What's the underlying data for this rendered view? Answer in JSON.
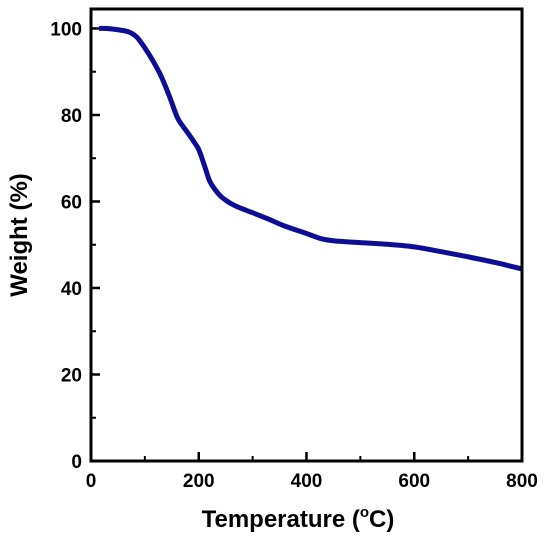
{
  "chart_data": {
    "type": "line",
    "xlabel": {
      "prefix": "Temperature (",
      "superscript": "o",
      "suffix": "C)"
    },
    "ylabel": "Weight (%)",
    "xlim": [
      0,
      800
    ],
    "ylim": [
      0,
      104.5
    ],
    "xticks": [
      0,
      200,
      400,
      600,
      800
    ],
    "yticks": [
      0,
      20,
      40,
      60,
      80,
      100
    ],
    "xtick_labels": [
      "0",
      "200",
      "400",
      "600",
      "800"
    ],
    "ytick_labels": [
      "0",
      "20",
      "40",
      "60",
      "80",
      "100"
    ],
    "grid": false,
    "series": [
      {
        "color": "#0d0d96",
        "x": [
          15,
          30,
          50,
          70,
          85,
          100,
          115,
          130,
          145,
          160,
          170,
          180,
          190,
          200,
          210,
          220,
          230,
          240,
          250,
          260,
          275,
          300,
          330,
          360,
          400,
          430,
          460,
          500,
          550,
          600,
          650,
          700,
          750,
          800
        ],
        "y": [
          100,
          100,
          99.7,
          99.2,
          98,
          95.5,
          92.5,
          89,
          84.5,
          79.5,
          77.5,
          75.8,
          74,
          72,
          68.5,
          64.8,
          62.8,
          61.3,
          60.3,
          59.5,
          58.6,
          57.4,
          55.9,
          54.3,
          52.6,
          51.3,
          50.8,
          50.5,
          50.1,
          49.5,
          48.4,
          47.2,
          45.9,
          44.4
        ]
      }
    ]
  }
}
